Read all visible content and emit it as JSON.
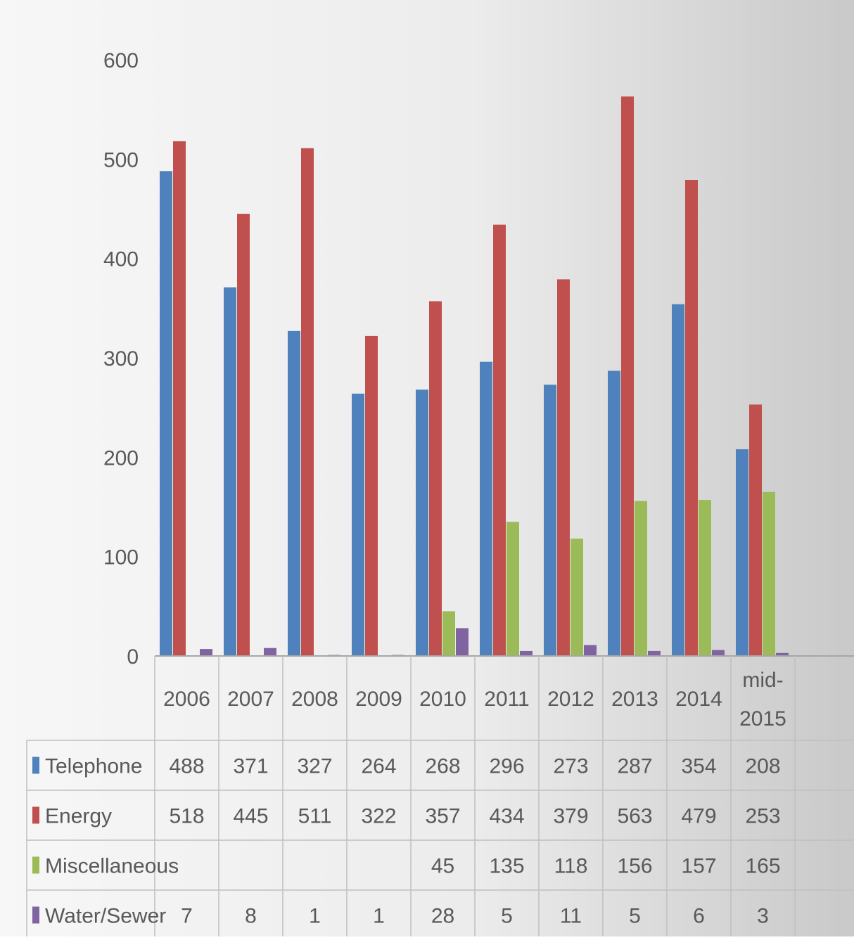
{
  "chart_data": {
    "type": "bar",
    "title": "",
    "xlabel": "",
    "ylabel": "",
    "ylim": [
      0,
      600
    ],
    "y_ticks": [
      0,
      100,
      200,
      300,
      400,
      500,
      600
    ],
    "grid": true,
    "data_table": true,
    "legend": "in data table (left of rows)",
    "categories": [
      "2006",
      "2007",
      "2008",
      "2009",
      "2010",
      "2011",
      "2012",
      "2013",
      "2014",
      "mid-2015"
    ],
    "series": [
      {
        "name": "Telephone",
        "color": "#4f81bd",
        "values": [
          488,
          371,
          327,
          264,
          268,
          296,
          273,
          287,
          354,
          208
        ]
      },
      {
        "name": "Energy",
        "color": "#c0504d",
        "values": [
          518,
          445,
          511,
          322,
          357,
          434,
          379,
          563,
          479,
          253
        ]
      },
      {
        "name": "Miscellaneous",
        "color": "#9bbb59",
        "values": [
          null,
          null,
          null,
          null,
          45,
          135,
          118,
          156,
          157,
          165
        ]
      },
      {
        "name": "Water/Sewer",
        "color": "#8064a2",
        "values": [
          7,
          8,
          1,
          1,
          28,
          5,
          11,
          5,
          6,
          3
        ]
      }
    ]
  }
}
